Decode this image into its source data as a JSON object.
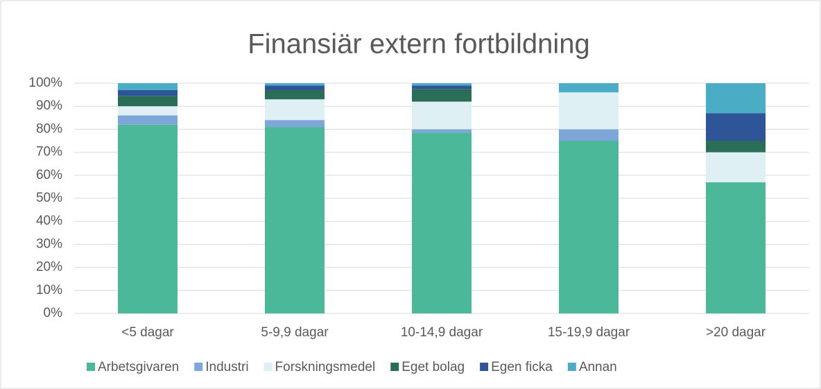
{
  "chart_data": {
    "type": "stacked_bar",
    "title": "Finansiär extern fortbildning",
    "categories": [
      "<5 dagar",
      "5-9,9 dagar",
      "10-14,9 dagar",
      "15-19,9 dagar",
      ">20 dagar"
    ],
    "series": [
      {
        "name": "Arbetsgivaren",
        "color": "#4bb89a",
        "values": [
          82,
          81,
          78.5,
          75,
          57
        ]
      },
      {
        "name": "Industri",
        "color": "#7fa6d9",
        "values": [
          4,
          3,
          1.5,
          5,
          0
        ]
      },
      {
        "name": "Forskningsmedel",
        "color": "#dff0f5",
        "values": [
          4,
          9,
          12,
          16,
          13
        ]
      },
      {
        "name": "Eget bolag",
        "color": "#2a6e58",
        "values": [
          4.5,
          4,
          5.5,
          0,
          5
        ]
      },
      {
        "name": "Egen ficka",
        "color": "#2e5597",
        "values": [
          2.5,
          2,
          1.5,
          0,
          12
        ]
      },
      {
        "name": "Annan",
        "color": "#4bacc6",
        "values": [
          3,
          1,
          1,
          4,
          13
        ]
      }
    ],
    "ylim": [
      0,
      100
    ],
    "yticks": [
      {
        "value": 0,
        "label": "0%"
      },
      {
        "value": 10,
        "label": "10%"
      },
      {
        "value": 20,
        "label": "20%"
      },
      {
        "value": 30,
        "label": "30%"
      },
      {
        "value": 40,
        "label": "40%"
      },
      {
        "value": 50,
        "label": "50%"
      },
      {
        "value": 60,
        "label": "60%"
      },
      {
        "value": 70,
        "label": "70%"
      },
      {
        "value": 80,
        "label": "80%"
      },
      {
        "value": 90,
        "label": "90%"
      },
      {
        "value": 100,
        "label": "100%"
      }
    ],
    "grid": true,
    "legend": "bottom"
  }
}
